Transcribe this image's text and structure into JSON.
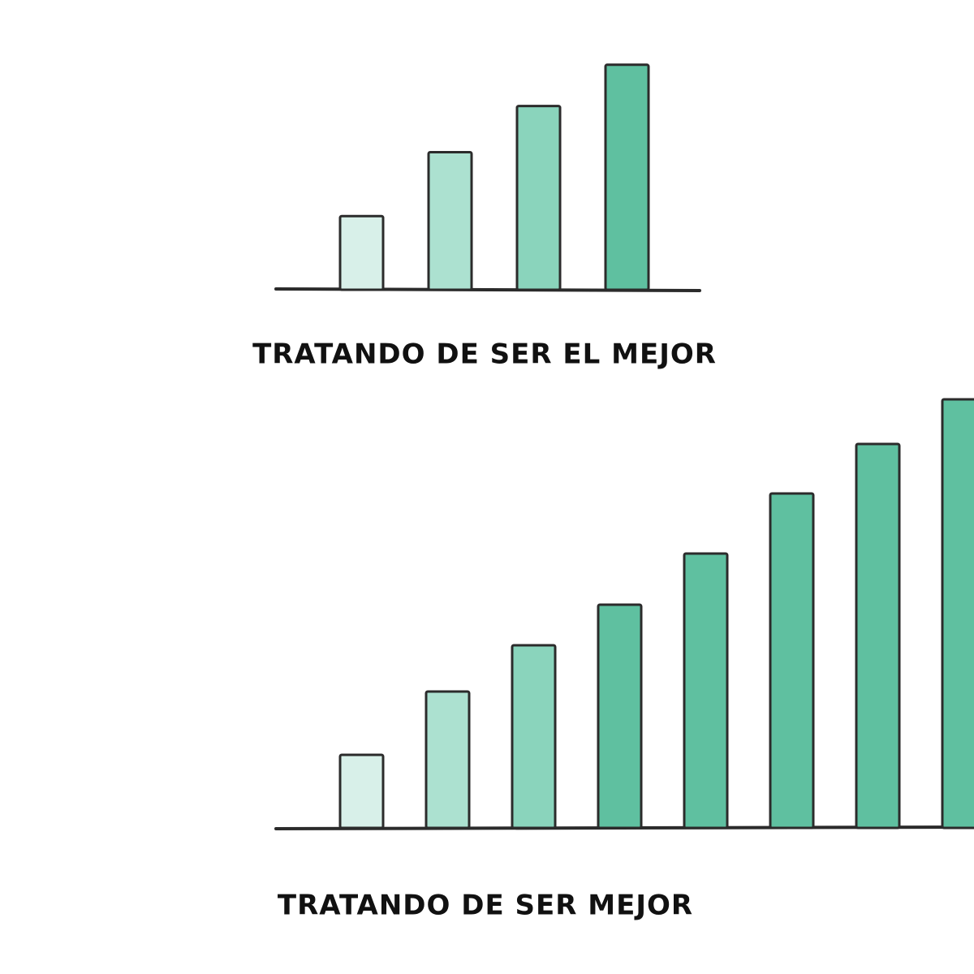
{
  "chart_data": [
    {
      "type": "bar",
      "title": "TRATANDO DE SER EL MEJOR",
      "categories": [
        null,
        null,
        null,
        null
      ],
      "values": [
        91,
        170,
        227,
        278
      ],
      "colors": [
        "#d8f0e9",
        "#ace1d0",
        "#8ad4bc",
        "#5fc0a0"
      ],
      "ylim": [
        0,
        350
      ]
    },
    {
      "type": "bar",
      "title": "TRATANDO DE SER MEJOR",
      "categories": [
        null,
        null,
        null,
        null,
        null,
        null,
        null,
        null
      ],
      "values": [
        90,
        168,
        225,
        275,
        338,
        412,
        473,
        528
      ],
      "colors": [
        "#d8f0e9",
        "#ace1d0",
        "#8ad4bc",
        "#5fc0a0",
        "#5fc0a0",
        "#5fc0a0",
        "#5fc0a0",
        "#5fc0a0"
      ],
      "ylim": [
        0,
        560
      ]
    }
  ]
}
